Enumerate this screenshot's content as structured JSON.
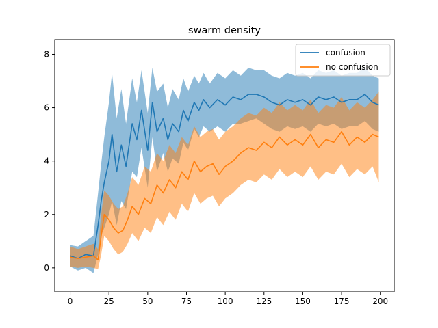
{
  "chart_data": {
    "type": "line",
    "title": "swarm density",
    "xlabel": "",
    "ylabel": "",
    "xlim": [
      -9.95,
      208.95
    ],
    "ylim": [
      -0.9,
      8.55
    ],
    "xticks": [
      0,
      25,
      50,
      75,
      100,
      125,
      150,
      175,
      200
    ],
    "yticks": [
      0,
      2,
      4,
      6,
      8
    ],
    "grid": false,
    "legend_position": "top-right",
    "series": [
      {
        "name": "confusion",
        "color": "#1f77b4",
        "band_color": "#1f77b4",
        "band_opacity": 0.5,
        "x": [
          0,
          5,
          10,
          15,
          18,
          20,
          22,
          25,
          27,
          30,
          33,
          36,
          40,
          43,
          46,
          50,
          53,
          56,
          60,
          63,
          66,
          70,
          73,
          76,
          80,
          83,
          86,
          90,
          95,
          100,
          105,
          110,
          115,
          120,
          125,
          130,
          135,
          140,
          145,
          150,
          155,
          160,
          165,
          170,
          175,
          180,
          185,
          190,
          195,
          199
        ],
        "mean": [
          0.45,
          0.35,
          0.5,
          0.45,
          1.6,
          2.5,
          3.2,
          4.0,
          5.0,
          3.6,
          4.6,
          3.8,
          5.4,
          4.8,
          5.9,
          4.4,
          6.2,
          5.1,
          5.6,
          4.8,
          5.4,
          5.1,
          5.9,
          5.5,
          6.2,
          5.9,
          6.3,
          6.0,
          6.3,
          6.1,
          6.4,
          6.3,
          6.5,
          6.5,
          6.4,
          6.2,
          6.1,
          6.3,
          6.2,
          6.3,
          6.1,
          6.4,
          6.3,
          6.4,
          6.2,
          6.3,
          6.3,
          6.5,
          6.2,
          6.1
        ],
        "lower": [
          0.05,
          -0.1,
          0.0,
          -0.2,
          0.5,
          1.2,
          1.5,
          2.0,
          2.5,
          1.6,
          2.5,
          2.2,
          3.6,
          3.4,
          4.5,
          3.0,
          4.9,
          3.6,
          4.3,
          3.6,
          4.1,
          3.9,
          4.7,
          4.4,
          5.2,
          4.9,
          5.3,
          5.1,
          5.3,
          5.1,
          5.4,
          5.4,
          5.5,
          5.6,
          5.4,
          5.2,
          5.1,
          5.3,
          5.2,
          5.3,
          5.1,
          5.4,
          5.3,
          5.4,
          5.2,
          5.3,
          5.3,
          5.5,
          5.2,
          5.1
        ],
        "upper": [
          0.85,
          0.8,
          1.0,
          1.2,
          2.8,
          3.9,
          4.9,
          6.2,
          7.3,
          5.6,
          6.7,
          5.4,
          7.1,
          6.2,
          7.4,
          5.8,
          7.5,
          6.6,
          6.9,
          6.0,
          6.7,
          6.3,
          7.1,
          6.6,
          7.2,
          6.9,
          7.3,
          6.9,
          7.3,
          7.1,
          7.4,
          7.2,
          7.5,
          7.4,
          7.4,
          7.2,
          7.1,
          7.3,
          7.2,
          7.3,
          7.1,
          7.4,
          7.3,
          7.4,
          7.2,
          7.3,
          7.3,
          7.5,
          7.2,
          7.1
        ]
      },
      {
        "name": "no confusion",
        "color": "#ff7f0e",
        "band_color": "#ff7f0e",
        "band_opacity": 0.5,
        "x": [
          0,
          5,
          10,
          15,
          18,
          20,
          22,
          25,
          28,
          31,
          34,
          37,
          40,
          44,
          48,
          52,
          56,
          60,
          64,
          68,
          72,
          76,
          80,
          84,
          88,
          92,
          96,
          100,
          105,
          110,
          115,
          120,
          125,
          130,
          135,
          140,
          145,
          150,
          155,
          160,
          165,
          170,
          175,
          180,
          185,
          190,
          195,
          199
        ],
        "mean": [
          0.4,
          0.35,
          0.4,
          0.45,
          0.3,
          1.2,
          2.0,
          1.8,
          1.5,
          1.3,
          1.4,
          1.8,
          2.3,
          2.0,
          2.6,
          2.4,
          3.1,
          2.8,
          3.3,
          3.0,
          3.6,
          3.3,
          4.0,
          3.6,
          3.8,
          3.9,
          3.5,
          3.8,
          4.0,
          4.3,
          4.5,
          4.4,
          4.7,
          4.5,
          4.9,
          4.6,
          4.8,
          4.6,
          5.0,
          4.5,
          4.8,
          4.7,
          5.1,
          4.6,
          4.9,
          4.7,
          5.0,
          4.9
        ],
        "lower": [
          0.05,
          0.0,
          0.05,
          0.0,
          -0.05,
          0.5,
          1.2,
          1.0,
          0.7,
          0.5,
          0.6,
          0.9,
          1.3,
          1.0,
          1.5,
          1.3,
          1.9,
          1.6,
          2.1,
          1.8,
          2.4,
          2.1,
          2.8,
          2.4,
          2.6,
          2.7,
          2.3,
          2.6,
          2.8,
          3.1,
          3.3,
          3.2,
          3.5,
          3.3,
          3.7,
          3.4,
          3.6,
          3.4,
          3.8,
          3.3,
          3.6,
          3.5,
          3.9,
          3.4,
          3.7,
          3.5,
          3.8,
          3.2
        ],
        "upper": [
          0.8,
          0.7,
          0.8,
          0.9,
          0.7,
          2.0,
          2.9,
          2.7,
          2.4,
          2.2,
          2.3,
          2.8,
          3.4,
          3.1,
          3.8,
          3.6,
          4.3,
          4.0,
          4.6,
          4.3,
          4.9,
          4.6,
          5.3,
          4.9,
          5.1,
          5.2,
          4.8,
          5.1,
          5.3,
          5.6,
          5.8,
          5.7,
          6.0,
          5.8,
          6.2,
          5.9,
          6.1,
          5.9,
          6.3,
          5.8,
          6.1,
          6.0,
          6.4,
          5.9,
          6.2,
          6.0,
          6.3,
          6.6
        ]
      }
    ]
  }
}
